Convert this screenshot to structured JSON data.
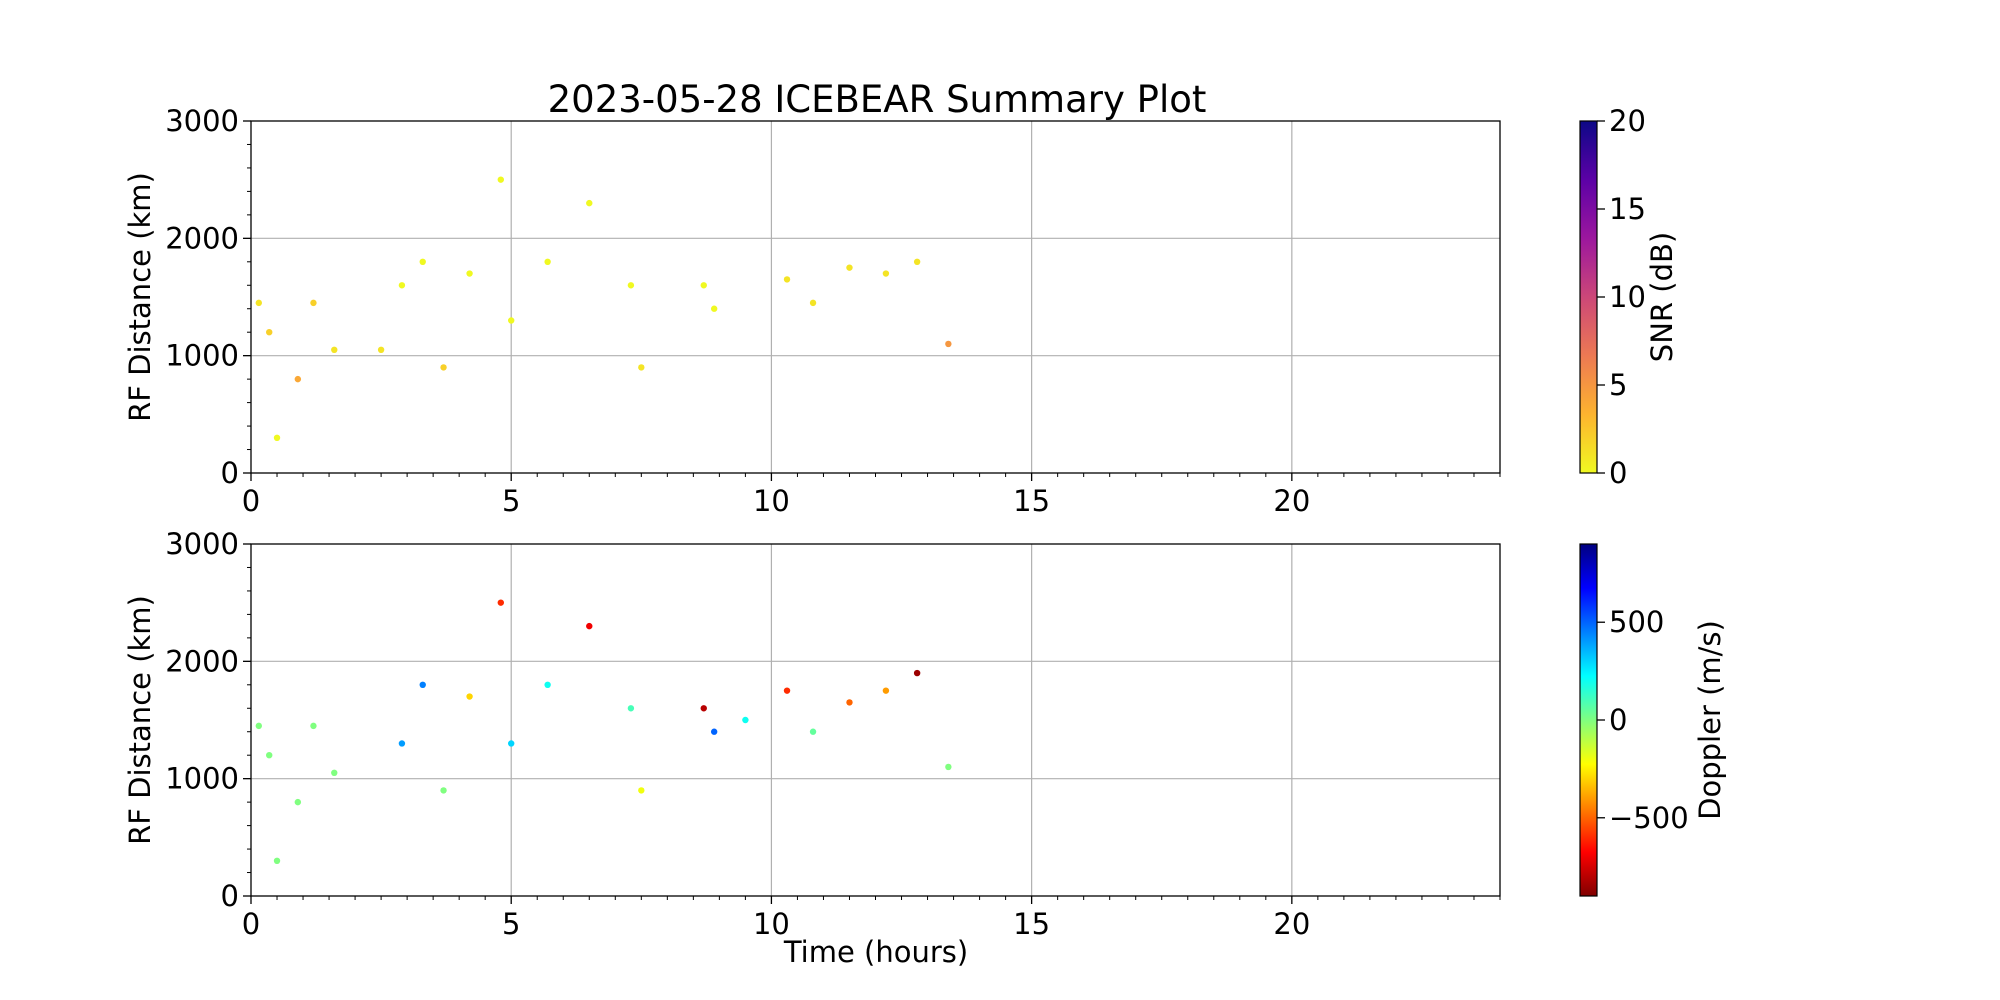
{
  "chart_data": [
    {
      "type": "scatter",
      "title": "2023-05-28 ICEBEAR Summary Plot",
      "xlabel": "",
      "ylabel": "RF Distance (km)",
      "xlim": [
        0,
        24
      ],
      "ylim": [
        0,
        3000
      ],
      "xticks": [
        0,
        5,
        10,
        15,
        20
      ],
      "yticks": [
        0,
        1000,
        2000,
        3000
      ],
      "grid": true,
      "color_variable": "SNR",
      "colorbar": {
        "label": "SNR (dB)",
        "range": [
          0,
          20
        ],
        "ticks": [
          0,
          5,
          10,
          15,
          20
        ],
        "colormap": "plasma_r",
        "colors": [
          "#f0f921",
          "#fdb42f",
          "#ed7953",
          "#cc4778",
          "#9c179e",
          "#5c01a6",
          "#0d0887"
        ]
      },
      "series": [
        {
          "x": [
            0.15,
            0.35,
            0.5,
            0.9,
            1.2,
            1.6,
            2.5,
            2.9,
            3.3,
            3.7,
            4.2,
            4.8,
            5.0,
            5.7,
            6.5,
            7.3,
            7.5,
            8.7,
            8.9,
            10.3,
            10.8,
            11.5,
            12.2,
            12.8,
            13.4
          ],
          "y": [
            1450,
            1200,
            300,
            800,
            1450,
            1050,
            1050,
            1600,
            1800,
            900,
            1700,
            2500,
            1300,
            1800,
            2300,
            1600,
            900,
            1600,
            1400,
            1650,
            1450,
            1750,
            1700,
            1800,
            1100
          ],
          "snr": [
            1,
            2,
            0,
            4,
            2,
            1,
            1,
            0,
            0,
            2,
            0,
            0,
            0,
            0,
            0,
            0,
            1,
            0,
            0,
            1,
            1,
            1,
            1,
            1,
            5
          ]
        }
      ]
    },
    {
      "type": "scatter",
      "title": "",
      "xlabel": "Time (hours)",
      "ylabel": "RF Distance (km)",
      "xlim": [
        0,
        24
      ],
      "ylim": [
        0,
        3000
      ],
      "xticks": [
        0,
        5,
        10,
        15,
        20
      ],
      "yticks": [
        0,
        1000,
        2000,
        3000
      ],
      "grid": true,
      "color_variable": "Doppler",
      "colorbar": {
        "label": "Doppler (m/s)",
        "range": [
          -900,
          900
        ],
        "ticks": [
          -500,
          0,
          500
        ],
        "colormap": "jet_r",
        "colors": [
          "#800000",
          "#ff0000",
          "#ff8000",
          "#ffff00",
          "#80ff80",
          "#00ffff",
          "#0080ff",
          "#0000ff",
          "#000080"
        ]
      },
      "series": [
        {
          "x": [
            0.15,
            0.35,
            0.5,
            0.9,
            1.2,
            1.6,
            2.9,
            3.3,
            3.7,
            4.2,
            4.8,
            5.0,
            5.7,
            6.5,
            7.3,
            7.5,
            8.7,
            8.9,
            9.5,
            10.3,
            10.8,
            11.5,
            12.2,
            12.8,
            13.4
          ],
          "y": [
            1450,
            1200,
            300,
            800,
            1450,
            1050,
            1300,
            1800,
            900,
            1700,
            2500,
            1300,
            1800,
            2300,
            1600,
            900,
            1600,
            1400,
            1500,
            1750,
            1400,
            1650,
            1750,
            1900,
            1100
          ],
          "doppler": [
            0,
            0,
            0,
            0,
            0,
            0,
            400,
            450,
            0,
            -300,
            -600,
            300,
            200,
            -700,
            100,
            -200,
            -800,
            500,
            200,
            -600,
            50,
            -500,
            -400,
            -850,
            0
          ]
        }
      ]
    }
  ]
}
